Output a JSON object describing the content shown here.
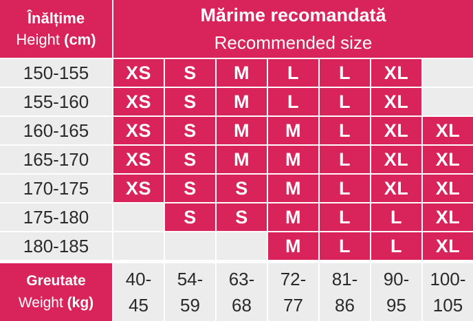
{
  "header": {
    "height_line1": "Înălțime",
    "height_line2_prefix": "Height",
    "height_line2_unit": "(cm)",
    "size_title": "Mărime recomandată",
    "size_subtitle": "Recommended size"
  },
  "footer": {
    "weight_line1": "Greutate",
    "weight_line2_prefix": "Weight",
    "weight_line2_unit": "(kg)",
    "weights": [
      [
        "40-",
        "45"
      ],
      [
        "54-",
        "59"
      ],
      [
        "63-",
        "68"
      ],
      [
        "72-",
        "77"
      ],
      [
        "81-",
        "86"
      ],
      [
        "90-",
        "95"
      ],
      [
        "100-",
        "105"
      ]
    ]
  },
  "rows": [
    {
      "height": "150-155",
      "sizes": [
        "XS",
        "S",
        "M",
        "L",
        "L",
        "XL",
        ""
      ]
    },
    {
      "height": "155-160",
      "sizes": [
        "XS",
        "S",
        "M",
        "L",
        "L",
        "XL",
        ""
      ]
    },
    {
      "height": "160-165",
      "sizes": [
        "XS",
        "S",
        "M",
        "M",
        "L",
        "XL",
        "XL"
      ]
    },
    {
      "height": "165-170",
      "sizes": [
        "XS",
        "S",
        "M",
        "M",
        "L",
        "XL",
        "XL"
      ]
    },
    {
      "height": "170-175",
      "sizes": [
        "XS",
        "S",
        "S",
        "M",
        "L",
        "XL",
        "XL"
      ]
    },
    {
      "height": "175-180",
      "sizes": [
        "",
        "S",
        "S",
        "M",
        "L",
        "L",
        "XL"
      ]
    },
    {
      "height": "180-185",
      "sizes": [
        "",
        "",
        "",
        "M",
        "L",
        "L",
        "XL"
      ]
    }
  ],
  "colors": {
    "accent": "#d8245a",
    "neutral": "#ececec"
  }
}
